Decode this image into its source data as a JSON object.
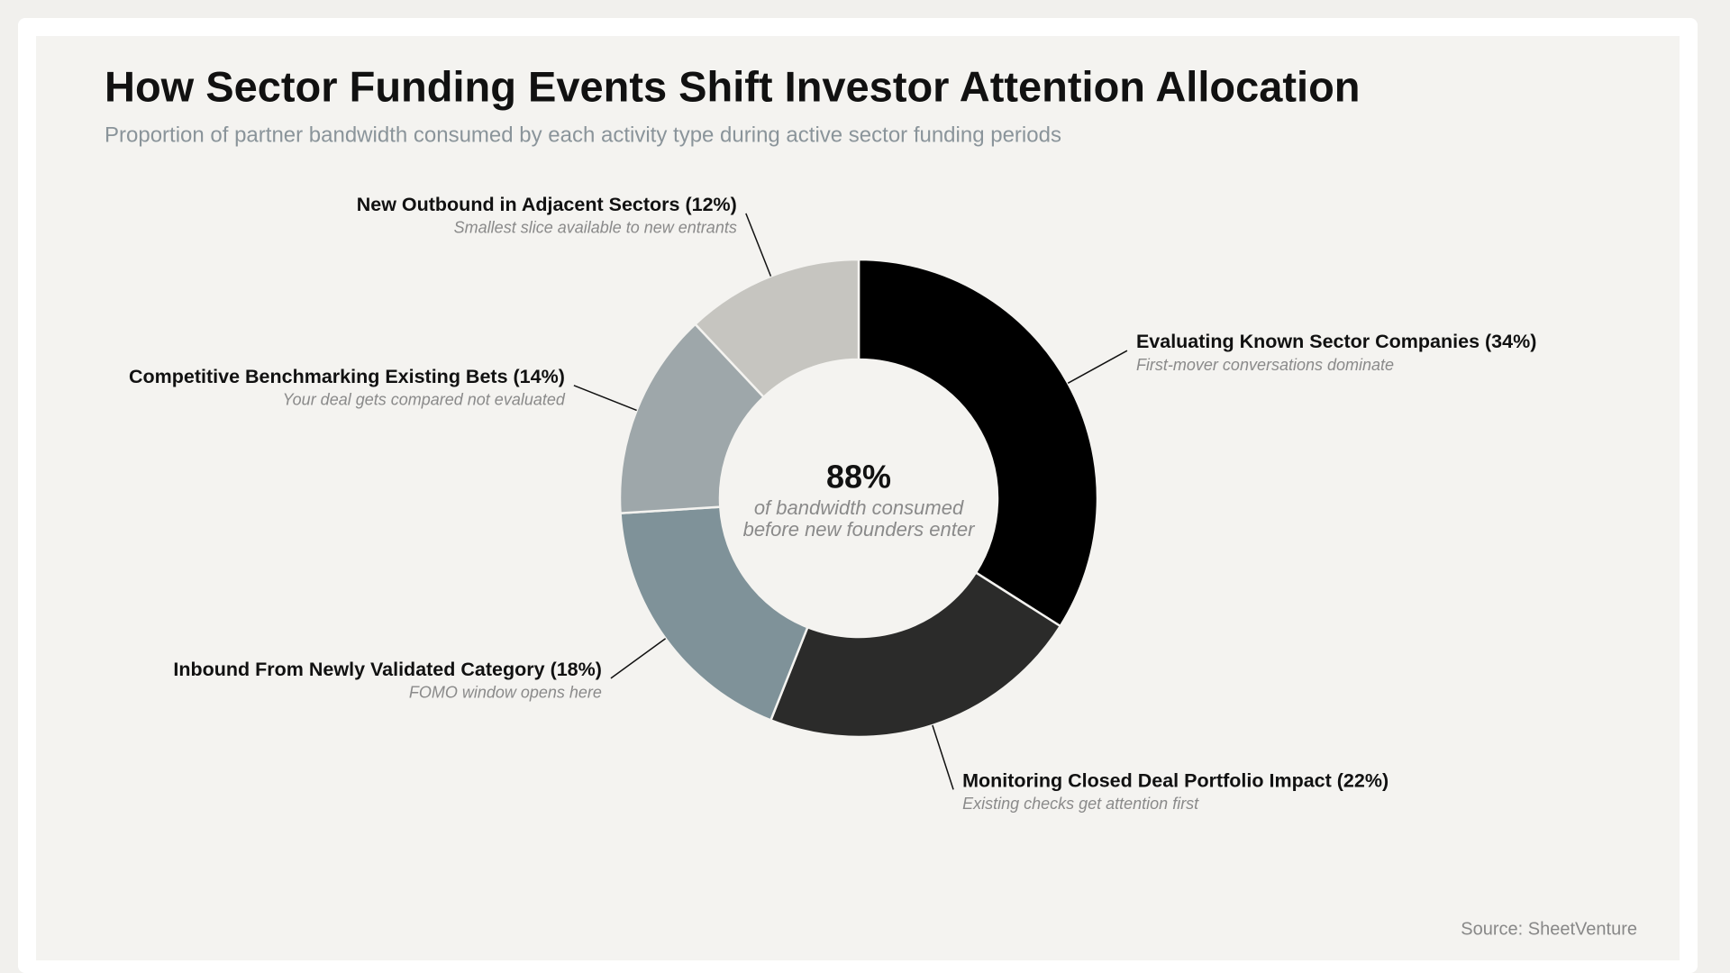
{
  "chart_data": {
    "type": "donut",
    "title": "How Sector Funding Events Shift Investor Attention Allocation",
    "subtitle": "Proportion of partner bandwidth consumed by each activity type during active sector funding periods",
    "categories": [
      "Evaluating Known Sector Companies",
      "Monitoring Closed Deal Portfolio Impact",
      "Inbound From Newly Validated Category",
      "Competitive Benchmarking Existing Bets",
      "New Outbound in Adjacent Sectors"
    ],
    "values": [
      34,
      22,
      18,
      14,
      12
    ],
    "value_labels": [
      "(34%)",
      "(22%)",
      "(18%)",
      "(14%)",
      "(12%)"
    ],
    "notes": [
      "First-mover conversations dominate",
      "Existing checks get attention first",
      "FOMO window opens here",
      "Your deal gets compared not evaluated",
      "Smallest slice available to new entrants"
    ],
    "colors": [
      "#000000",
      "#2b2b2a",
      "#7f9299",
      "#9ea7aa",
      "#c6c5c0"
    ],
    "center_label": "88%",
    "center_caption": [
      "of bandwidth consumed",
      "before new founders enter"
    ],
    "source": "Source: SheetVenture"
  }
}
